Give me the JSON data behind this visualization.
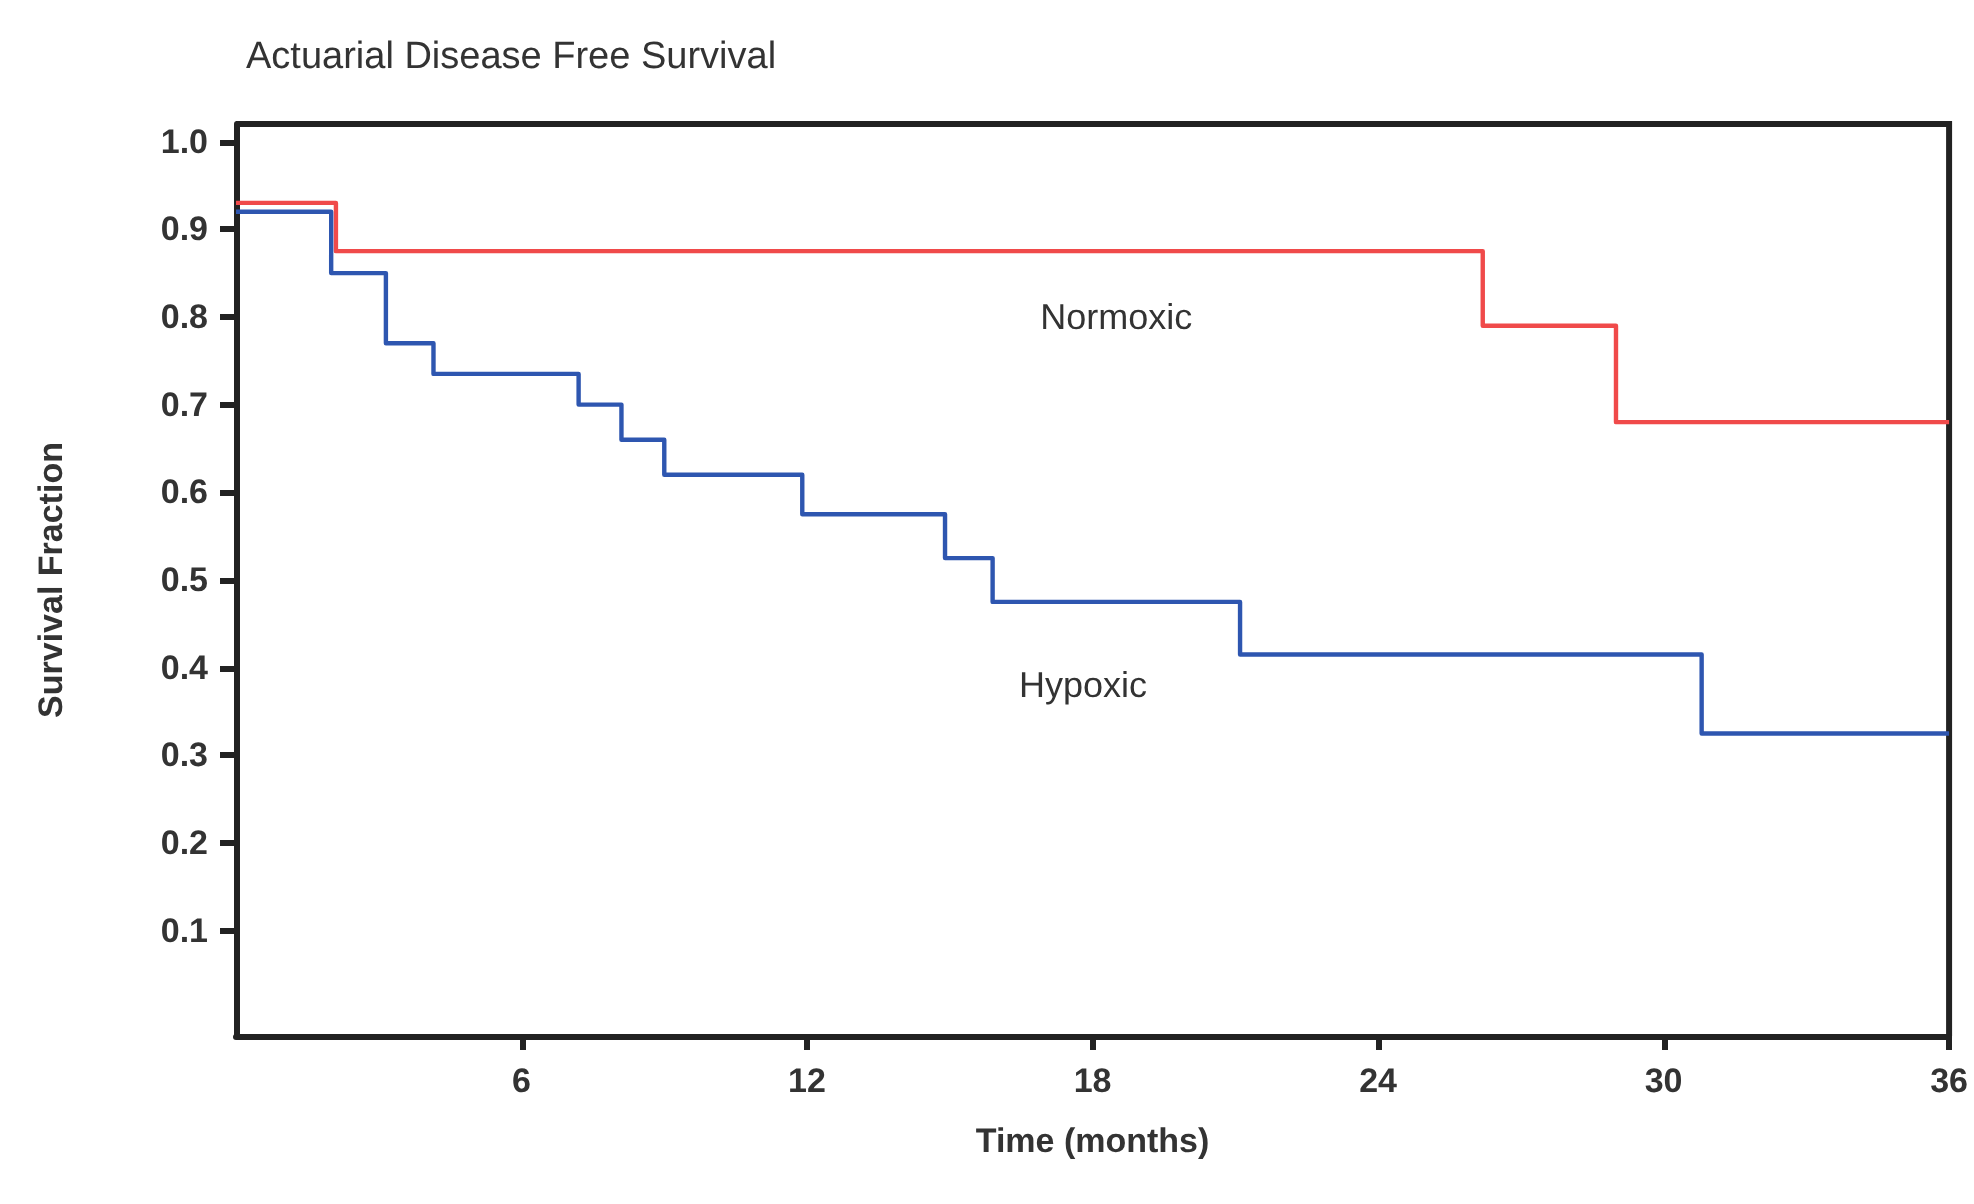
{
  "chart_data": {
    "type": "step",
    "title": "Actuarial Disease Free Survival",
    "xlabel": "Time (months)",
    "ylabel": "Survival Fraction",
    "xlim": [
      0,
      36
    ],
    "xticks": [
      6,
      12,
      18,
      24,
      30,
      36
    ],
    "ylim": [
      -0.02,
      1.02
    ],
    "yticks": [
      0.1,
      0.2,
      0.3,
      0.4,
      0.5,
      0.6,
      0.7,
      0.8,
      0.9,
      {
        "value": 1,
        "label": "1.0"
      }
    ],
    "grid": false,
    "legend": false,
    "marker": "none",
    "line_style": "solid",
    "series": [
      {
        "name": "Normoxic",
        "color": "#f04a4a",
        "x": [
          0,
          2.1,
          26.2,
          29.0,
          36
        ],
        "values": [
          0.93,
          0.875,
          0.79,
          0.68,
          0.68
        ]
      },
      {
        "name": "Hypoxic",
        "color": "#2e56b0",
        "x": [
          0,
          2.0,
          3.15,
          4.15,
          7.2,
          8.1,
          9.0,
          11.9,
          14.9,
          15.9,
          21.1,
          30.8,
          36
        ],
        "values": [
          0.92,
          0.85,
          0.77,
          0.735,
          0.7,
          0.66,
          0.62,
          0.575,
          0.525,
          0.475,
          0.415,
          0.325,
          0.325
        ]
      }
    ]
  }
}
